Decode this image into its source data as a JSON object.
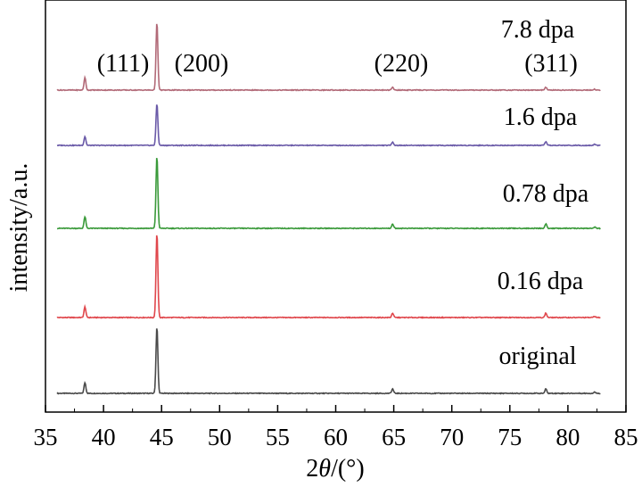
{
  "chart_data": {
    "type": "line",
    "title": "",
    "xlabel_prefix": "2",
    "xlabel_var": "θ",
    "xlabel_suffix": "/(°)",
    "ylabel": "intensity/a.u.",
    "xlim": [
      35,
      85
    ],
    "xticks": [
      "35",
      "40",
      "45",
      "50",
      "55",
      "60",
      "65",
      "70",
      "75",
      "80",
      "85"
    ],
    "grid": false,
    "peaks": [
      {
        "label": "(111)",
        "x": 38.4
      },
      {
        "label": "(200)",
        "x": 44.6
      },
      {
        "label": "(220)",
        "x": 64.9
      },
      {
        "label": "(311)",
        "x": 78.1
      },
      {
        "label": "",
        "x": 82.3
      }
    ],
    "series": [
      {
        "name": "original",
        "color": "#4a4a4a",
        "offset": 0.0,
        "heights": [
          12,
          75,
          5,
          5,
          1.5
        ]
      },
      {
        "name": "0.16 dpa",
        "color": "#e0474c",
        "offset": 1.0,
        "heights": [
          12,
          95,
          5,
          5,
          1.5
        ]
      },
      {
        "name": "0.78 dpa",
        "color": "#3a9a3a",
        "offset": 2.0,
        "heights": [
          13,
          81,
          5,
          5,
          1.5
        ]
      },
      {
        "name": "1.6 dpa",
        "color": "#6a5aa8",
        "offset": 3.0,
        "heights": [
          10,
          47,
          4,
          4,
          1.5
        ]
      },
      {
        "name": "7.8 dpa",
        "color": "#b26a78",
        "offset": 4.0,
        "heights": [
          14,
          76,
          3,
          3,
          1
        ]
      }
    ]
  }
}
